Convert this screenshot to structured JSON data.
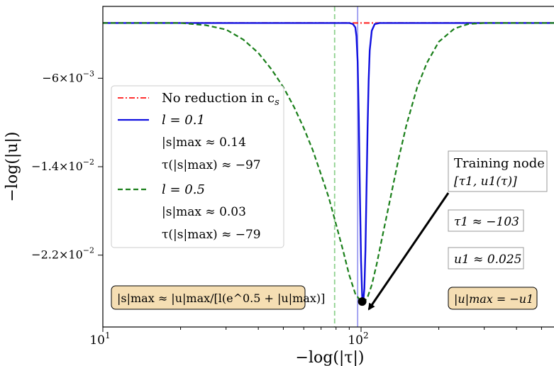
{
  "chart_data": {
    "type": "line",
    "xlabel": "−log(|τ|)",
    "ylabel": "−log(|u|)",
    "xscale": "log",
    "xlim": [
      10,
      600
    ],
    "ylim": [
      -0.0285,
      0.0005
    ],
    "x_ticks": [
      {
        "value": 10,
        "label": "10",
        "exp": "1"
      },
      {
        "value": 100,
        "label": "10",
        "exp": "2"
      }
    ],
    "y_ticks": [
      {
        "value": -0.006,
        "label": "−6×10",
        "exp": "−3"
      },
      {
        "value": -0.014,
        "label": "−1.4×10",
        "exp": "−2"
      },
      {
        "value": -0.022,
        "label": "−2.2×10",
        "exp": "−2"
      }
    ],
    "grid": false,
    "legend_position": "left-center",
    "series": [
      {
        "name": "No reduction in c_s",
        "style": "dash-dot",
        "color": "#ff3030",
        "x": [
          10,
          20,
          40,
          60,
          80,
          90,
          100,
          110,
          120,
          150,
          200,
          300,
          400,
          600
        ],
        "y": [
          -0.001,
          -0.001,
          -0.001,
          -0.001,
          -0.001,
          -0.001,
          -0.001,
          -0.001,
          -0.001,
          -0.001,
          -0.001,
          -0.001,
          -0.001,
          -0.001
        ]
      },
      {
        "name": "l = 0.1",
        "style": "solid",
        "color": "#1010e0",
        "x": [
          10,
          50,
          80,
          90,
          93,
          95,
          96,
          97,
          98,
          99,
          100,
          101,
          102,
          103,
          104,
          105,
          106,
          107,
          108,
          110,
          113,
          118,
          125,
          150,
          300,
          600
        ],
        "y": [
          -0.001,
          -0.001,
          -0.001,
          -0.001,
          -0.0011,
          -0.0014,
          -0.0022,
          -0.0045,
          -0.0095,
          -0.0165,
          -0.0225,
          -0.0258,
          -0.0262,
          -0.025,
          -0.0215,
          -0.016,
          -0.0105,
          -0.0062,
          -0.0035,
          -0.0017,
          -0.0011,
          -0.001,
          -0.001,
          -0.001,
          -0.001,
          -0.001
        ]
      },
      {
        "name": "l = 0.5",
        "style": "dashed",
        "color": "#1a7f1a",
        "x": [
          10,
          20,
          25,
          30,
          35,
          40,
          45,
          50,
          55,
          60,
          65,
          70,
          75,
          80,
          85,
          90,
          95,
          100,
          103,
          106,
          110,
          115,
          120,
          130,
          140,
          150,
          165,
          180,
          200,
          230,
          260,
          300,
          400,
          600
        ],
        "y": [
          -0.001,
          -0.001,
          -0.0012,
          -0.0016,
          -0.0025,
          -0.0037,
          -0.0052,
          -0.0068,
          -0.0086,
          -0.0105,
          -0.0125,
          -0.0147,
          -0.0168,
          -0.0192,
          -0.0215,
          -0.0238,
          -0.0255,
          -0.0262,
          -0.0262,
          -0.0258,
          -0.0247,
          -0.0228,
          -0.0207,
          -0.0168,
          -0.0132,
          -0.0102,
          -0.0068,
          -0.0046,
          -0.0027,
          -0.0015,
          -0.0011,
          -0.001,
          -0.001,
          -0.001
        ]
      }
    ],
    "vlines": [
      {
        "x": 79,
        "color": "#8fd18f"
      },
      {
        "x": 97,
        "color": "#9a9af0"
      }
    ],
    "training_point": {
      "x": 101,
      "y": -0.0262
    },
    "legend": {
      "entries": [
        {
          "label": "No reduction in c",
          "sub": "s"
        },
        {
          "label": "l = 0.1"
        },
        {
          "label": "l = 0.5"
        }
      ],
      "notes_l01": [
        "|s|max ≈ 0.14",
        "τ(|s|max) ≈ −97"
      ],
      "notes_l05": [
        "|s|max ≈ 0.03",
        "τ(|s|max) ≈ −79"
      ]
    },
    "annotations": {
      "training_node_title": "Training node",
      "training_node_math": "[τ1, u1(τ)]",
      "tau1": "τ1 ≈ −103",
      "u1": "u1 ≈ 0.025",
      "formula": "|s|max ≈ |u|max/[l(e^0.5 + |u|max)]",
      "umax": "|u|max = −u1"
    }
  }
}
